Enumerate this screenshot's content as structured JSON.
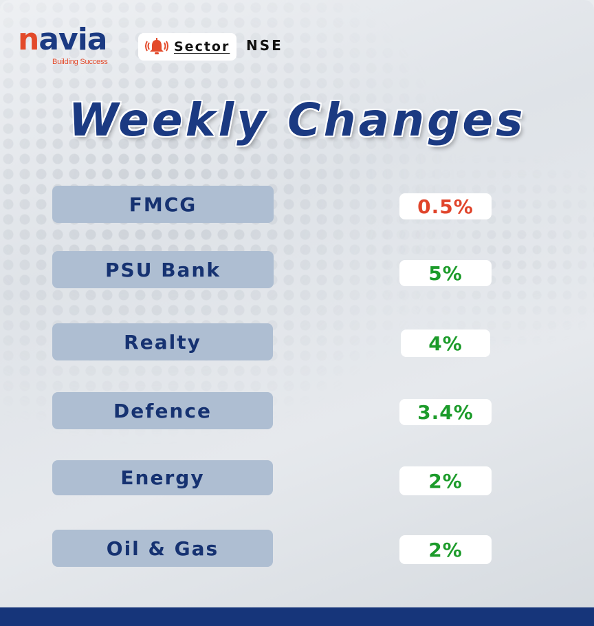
{
  "brand": {
    "logo_first": "n",
    "logo_rest": "avia",
    "tagline": "Building Success",
    "accent_color": "#e34a2a",
    "primary_color": "#1b3a82"
  },
  "badge": {
    "icon": "bell-alert-icon",
    "label": "Sector",
    "exchange": "NSE"
  },
  "title": "Weekly Changes",
  "rows": [
    {
      "sector": "FMCG",
      "change": "0.5%",
      "direction": "negative",
      "color": "#e0442b"
    },
    {
      "sector": "PSU Bank",
      "change": "5%",
      "direction": "positive",
      "color": "#1c9b2a"
    },
    {
      "sector": "Realty",
      "change": "4%",
      "direction": "positive",
      "color": "#1c9b2a"
    },
    {
      "sector": "Defence",
      "change": "3.4%",
      "direction": "positive",
      "color": "#1c9b2a"
    },
    {
      "sector": "Energy",
      "change": "2%",
      "direction": "positive",
      "color": "#1c9b2a"
    },
    {
      "sector": "Oil & Gas",
      "change": "2%",
      "direction": "positive",
      "color": "#1c9b2a"
    }
  ]
}
